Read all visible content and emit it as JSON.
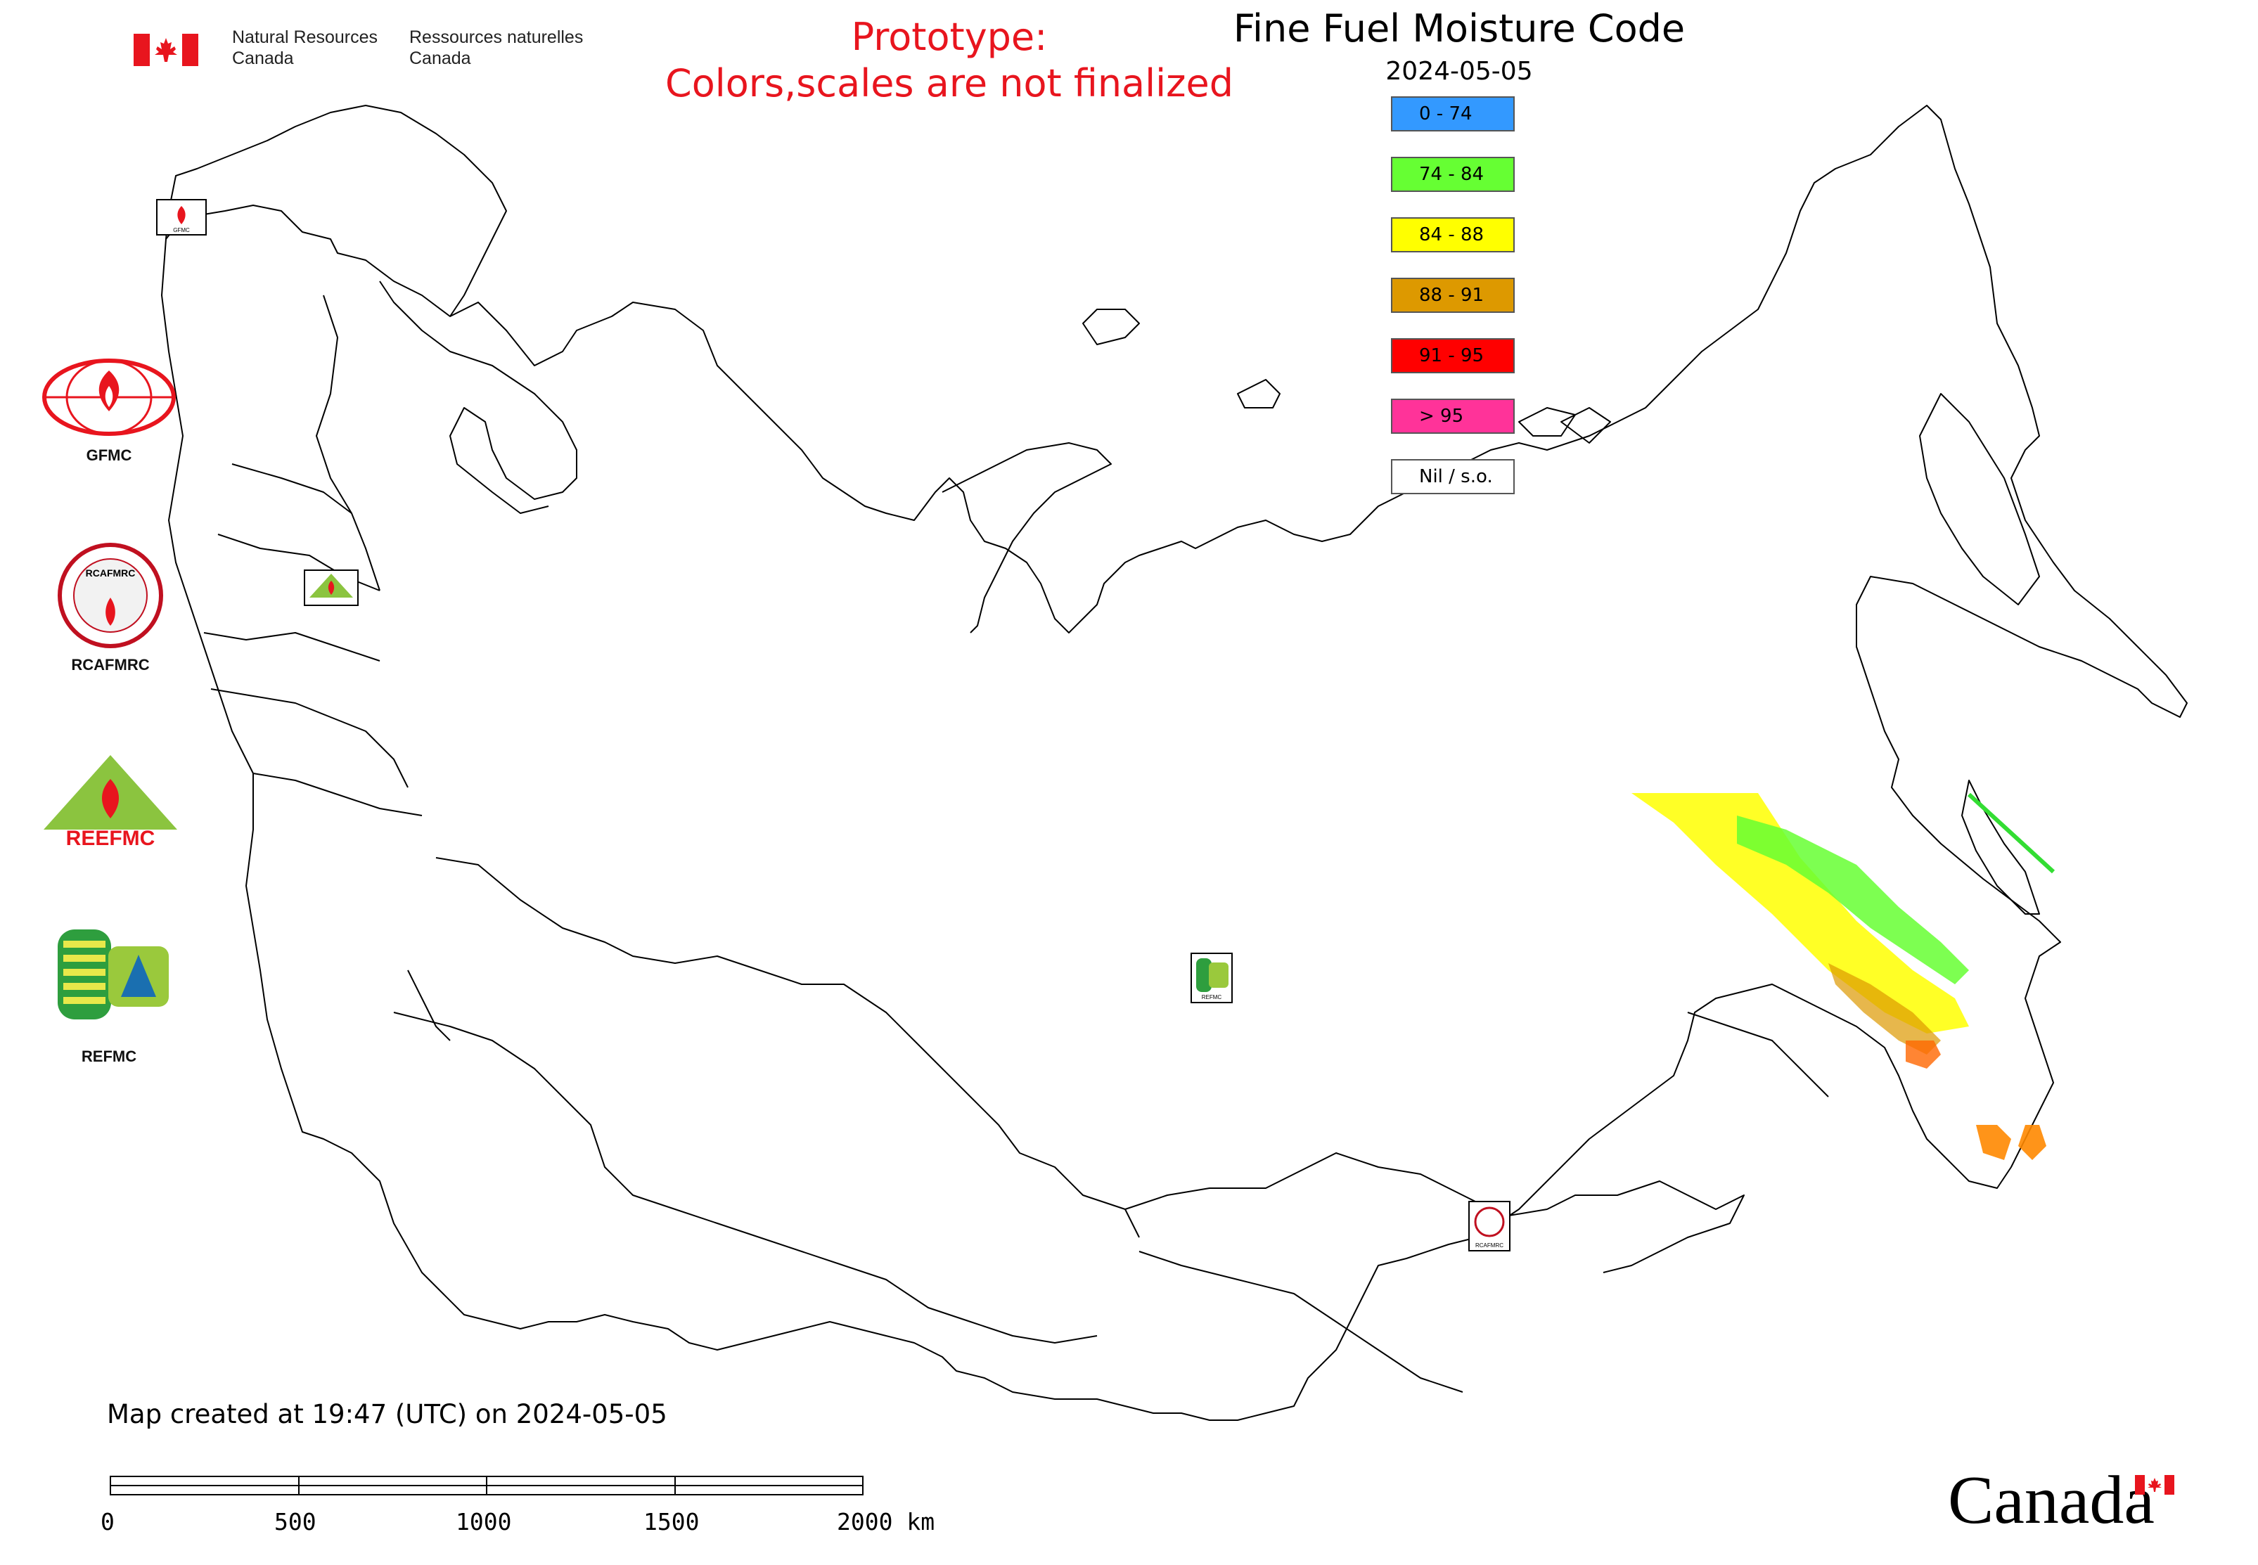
{
  "header": {
    "nrcan_en": "Natural Resources\nCanada",
    "nrcan_fr": "Ressources naturelles\nCanada",
    "prototype_line1": "Prototype:",
    "prototype_line2": "Colors,scales are not finalized"
  },
  "map": {
    "title": "Fine Fuel Moisture Code",
    "date": "2024-05-05"
  },
  "legend": [
    {
      "label": "0 - 74",
      "color": "#3399ff"
    },
    {
      "label": "74 - 84",
      "color": "#66ff33"
    },
    {
      "label": "84 - 88",
      "color": "#ffff00"
    },
    {
      "label": "88 - 91",
      "color": "#dd9900"
    },
    {
      "label": "91 - 95",
      "color": "#ff0000"
    },
    {
      "label": "> 95",
      "color": "#ff3399"
    },
    {
      "label": "Nil / s.o.",
      "color": "#ffffff"
    }
  ],
  "logos": {
    "gfmc": "GFMC",
    "rcafmrc": "RCAFMRC",
    "reefmc": "REEFMC",
    "refmc": "REFMC",
    "rcafmrc_ring": "RCAFMRC",
    "reefmc_word": "REEFMC",
    "gfmc_small": "GFMC",
    "refmc_small": "REFMC",
    "rcafmrc_small": "RCAFMRC"
  },
  "footer": {
    "created": "Map created at 19:47 (UTC) on 2024-05-05",
    "scale_labels": [
      "0",
      "500",
      "1000",
      "1500",
      "2000 km"
    ],
    "wordmark": "Canada"
  },
  "colors": {
    "prototype_text": "#e8151e",
    "canada_red": "#e8151e"
  }
}
